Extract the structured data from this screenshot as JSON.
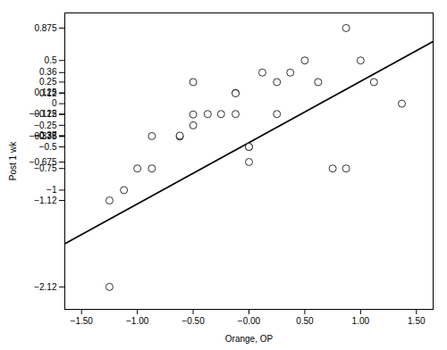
{
  "chart_data": {
    "type": "scatter",
    "xlabel": "Orange, OP",
    "ylabel": "Post 1 wk",
    "xlim": [
      -1.65,
      1.65
    ],
    "ylim": [
      -2.38,
      1.05
    ],
    "xticks": [
      {
        "value": -1.5,
        "label": "−1.50"
      },
      {
        "value": -1.0,
        "label": "−1.00"
      },
      {
        "value": -0.5,
        "label": "−0.50"
      },
      {
        "value": 0.0,
        "label": "−0.00"
      },
      {
        "value": 0.5,
        "label": "0.50"
      },
      {
        "value": 1.0,
        "label": "1.00"
      },
      {
        "value": 1.5,
        "label": "1.50"
      }
    ],
    "yticks": [
      0.875,
      0.5,
      0.36,
      0.25,
      0.125,
      0.12,
      0,
      {
        "value": -0.12,
        "label": "−0.12"
      },
      {
        "value": -0.125,
        "label": "−0.125"
      },
      {
        "value": -0.25,
        "label": "−0.25"
      },
      {
        "value": -0.37,
        "label": "−0.37"
      },
      {
        "value": -0.375,
        "label": "−0.375"
      },
      {
        "value": -0.38,
        "label": "−0.38"
      },
      {
        "value": -0.5,
        "label": "−0.5"
      },
      {
        "value": -0.675,
        "label": "−0.675"
      },
      {
        "value": -0.75,
        "label": "−0.75"
      },
      {
        "value": -1,
        "label": "−1"
      },
      {
        "value": -1.12,
        "label": "−1.12"
      },
      {
        "value": -2.12,
        "label": "−2.12"
      }
    ],
    "series": [
      {
        "type": "scatter",
        "color": "black",
        "marker": "open",
        "x": [
          -1.12,
          -1.25,
          -1.25,
          -0.87,
          -1.0,
          -0.87,
          -0.62,
          -0.62,
          -0.5,
          -0.5,
          -0.5,
          -0.37,
          -0.25,
          -0.12,
          -0.12,
          -0.12,
          -0.0,
          -0.0,
          0.0,
          0.12,
          0.25,
          0.25,
          0.37,
          0.5,
          0.62,
          0.75,
          0.87,
          0.87,
          1.0,
          1.12,
          1.37
        ],
        "values": [
          -1.0,
          -2.12,
          -1.12,
          -0.375,
          -0.75,
          -0.75,
          -0.38,
          -0.37,
          0.25,
          -0.125,
          -0.25,
          -0.12,
          -0.12,
          0.125,
          0.12,
          -0.12,
          -0.5,
          -0.5,
          -0.675,
          0.36,
          -0.12,
          0.25,
          0.36,
          0.5,
          0.25,
          -0.75,
          -0.75,
          0.875,
          0.5,
          0.25,
          0.0
        ]
      },
      {
        "type": "line",
        "color": "black",
        "x": [
          -1.65,
          1.65
        ],
        "values": [
          -1.62,
          0.72
        ]
      }
    ]
  }
}
